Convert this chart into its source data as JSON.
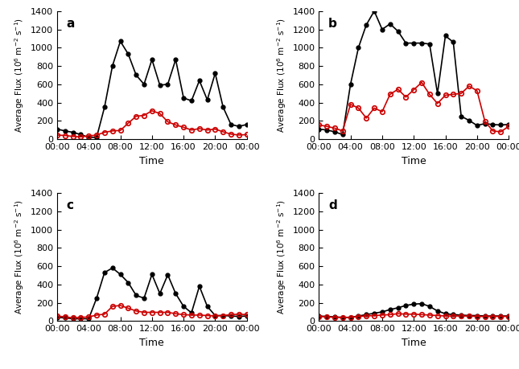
{
  "time_tick_positions": [
    0,
    4,
    8,
    12,
    16,
    20,
    24
  ],
  "time_tick_labels": [
    "00:00",
    "04:00",
    "08:00",
    "12:00",
    "16:00",
    "20:00",
    "00:00"
  ],
  "panel_labels": [
    "a",
    "b",
    "c",
    "d"
  ],
  "ylim": [
    0,
    1400
  ],
  "yticks": [
    0,
    200,
    400,
    600,
    800,
    1000,
    1200,
    1400
  ],
  "ylabel": "Average Flux (10$^6$ m$^{-2}$ s$^{-1}$)",
  "xlabel": "Time",
  "black_color": "#000000",
  "red_color": "#cc0000",
  "panel_a": {
    "black_x": [
      0,
      1,
      2,
      3,
      4,
      5,
      6,
      7,
      8,
      9,
      10,
      11,
      12,
      13,
      14,
      15,
      16,
      17,
      18,
      19,
      20,
      21,
      22,
      23,
      24
    ],
    "black_y": [
      110,
      90,
      75,
      50,
      20,
      20,
      350,
      800,
      1070,
      930,
      700,
      600,
      870,
      590,
      600,
      870,
      450,
      420,
      640,
      430,
      720,
      350,
      160,
      140,
      160
    ],
    "red_x": [
      0,
      1,
      2,
      3,
      4,
      5,
      6,
      7,
      8,
      9,
      10,
      11,
      12,
      13,
      14,
      15,
      16,
      17,
      18,
      19,
      20,
      21,
      22,
      23,
      24
    ],
    "red_y": [
      45,
      40,
      30,
      25,
      35,
      45,
      75,
      90,
      95,
      175,
      250,
      260,
      310,
      280,
      190,
      155,
      130,
      100,
      115,
      100,
      110,
      80,
      55,
      45,
      50
    ]
  },
  "panel_b": {
    "black_x": [
      0,
      1,
      2,
      3,
      4,
      5,
      6,
      7,
      8,
      9,
      10,
      11,
      12,
      13,
      14,
      15,
      16,
      17,
      18,
      19,
      20,
      21,
      22,
      23,
      24
    ],
    "black_y": [
      110,
      100,
      80,
      50,
      600,
      1000,
      1250,
      1400,
      1200,
      1260,
      1180,
      1050,
      1050,
      1050,
      1040,
      500,
      1130,
      1060,
      250,
      205,
      150,
      170,
      160,
      155,
      160
    ],
    "red_x": [
      0,
      1,
      2,
      3,
      4,
      5,
      6,
      7,
      8,
      9,
      10,
      11,
      12,
      13,
      14,
      15,
      16,
      17,
      18,
      19,
      20,
      21,
      22,
      23,
      24
    ],
    "red_y": [
      155,
      140,
      120,
      90,
      380,
      340,
      230,
      340,
      300,
      490,
      545,
      460,
      540,
      620,
      490,
      390,
      480,
      490,
      500,
      580,
      530,
      195,
      90,
      80,
      140
    ]
  },
  "panel_c": {
    "black_x": [
      0,
      1,
      2,
      3,
      4,
      5,
      6,
      7,
      8,
      9,
      10,
      11,
      12,
      13,
      14,
      15,
      16,
      17,
      18,
      19,
      20,
      21,
      22,
      23,
      24
    ],
    "black_y": [
      40,
      35,
      25,
      25,
      25,
      250,
      530,
      580,
      510,
      420,
      280,
      250,
      510,
      300,
      505,
      300,
      160,
      90,
      380,
      160,
      60,
      60,
      55,
      50,
      55
    ],
    "red_x": [
      0,
      1,
      2,
      3,
      4,
      5,
      6,
      7,
      8,
      9,
      10,
      11,
      12,
      13,
      14,
      15,
      16,
      17,
      18,
      19,
      20,
      21,
      22,
      23,
      24
    ],
    "red_y": [
      55,
      45,
      35,
      40,
      45,
      65,
      75,
      160,
      170,
      140,
      110,
      95,
      95,
      95,
      95,
      80,
      70,
      65,
      65,
      60,
      55,
      60,
      70,
      75,
      70
    ]
  },
  "panel_d": {
    "black_x": [
      0,
      1,
      2,
      3,
      4,
      5,
      6,
      7,
      8,
      9,
      10,
      11,
      12,
      13,
      14,
      15,
      16,
      17,
      18,
      19,
      20,
      21,
      22,
      23,
      24
    ],
    "black_y": [
      55,
      50,
      45,
      40,
      40,
      55,
      70,
      85,
      100,
      125,
      145,
      170,
      185,
      190,
      160,
      110,
      80,
      70,
      65,
      60,
      60,
      55,
      55,
      55,
      55
    ],
    "red_x": [
      0,
      1,
      2,
      3,
      4,
      5,
      6,
      7,
      8,
      9,
      10,
      11,
      12,
      13,
      14,
      15,
      16,
      17,
      18,
      19,
      20,
      21,
      22,
      23,
      24
    ],
    "red_y": [
      50,
      45,
      40,
      40,
      40,
      50,
      55,
      60,
      65,
      70,
      80,
      75,
      75,
      70,
      65,
      60,
      55,
      55,
      55,
      55,
      50,
      50,
      50,
      50,
      50
    ]
  }
}
